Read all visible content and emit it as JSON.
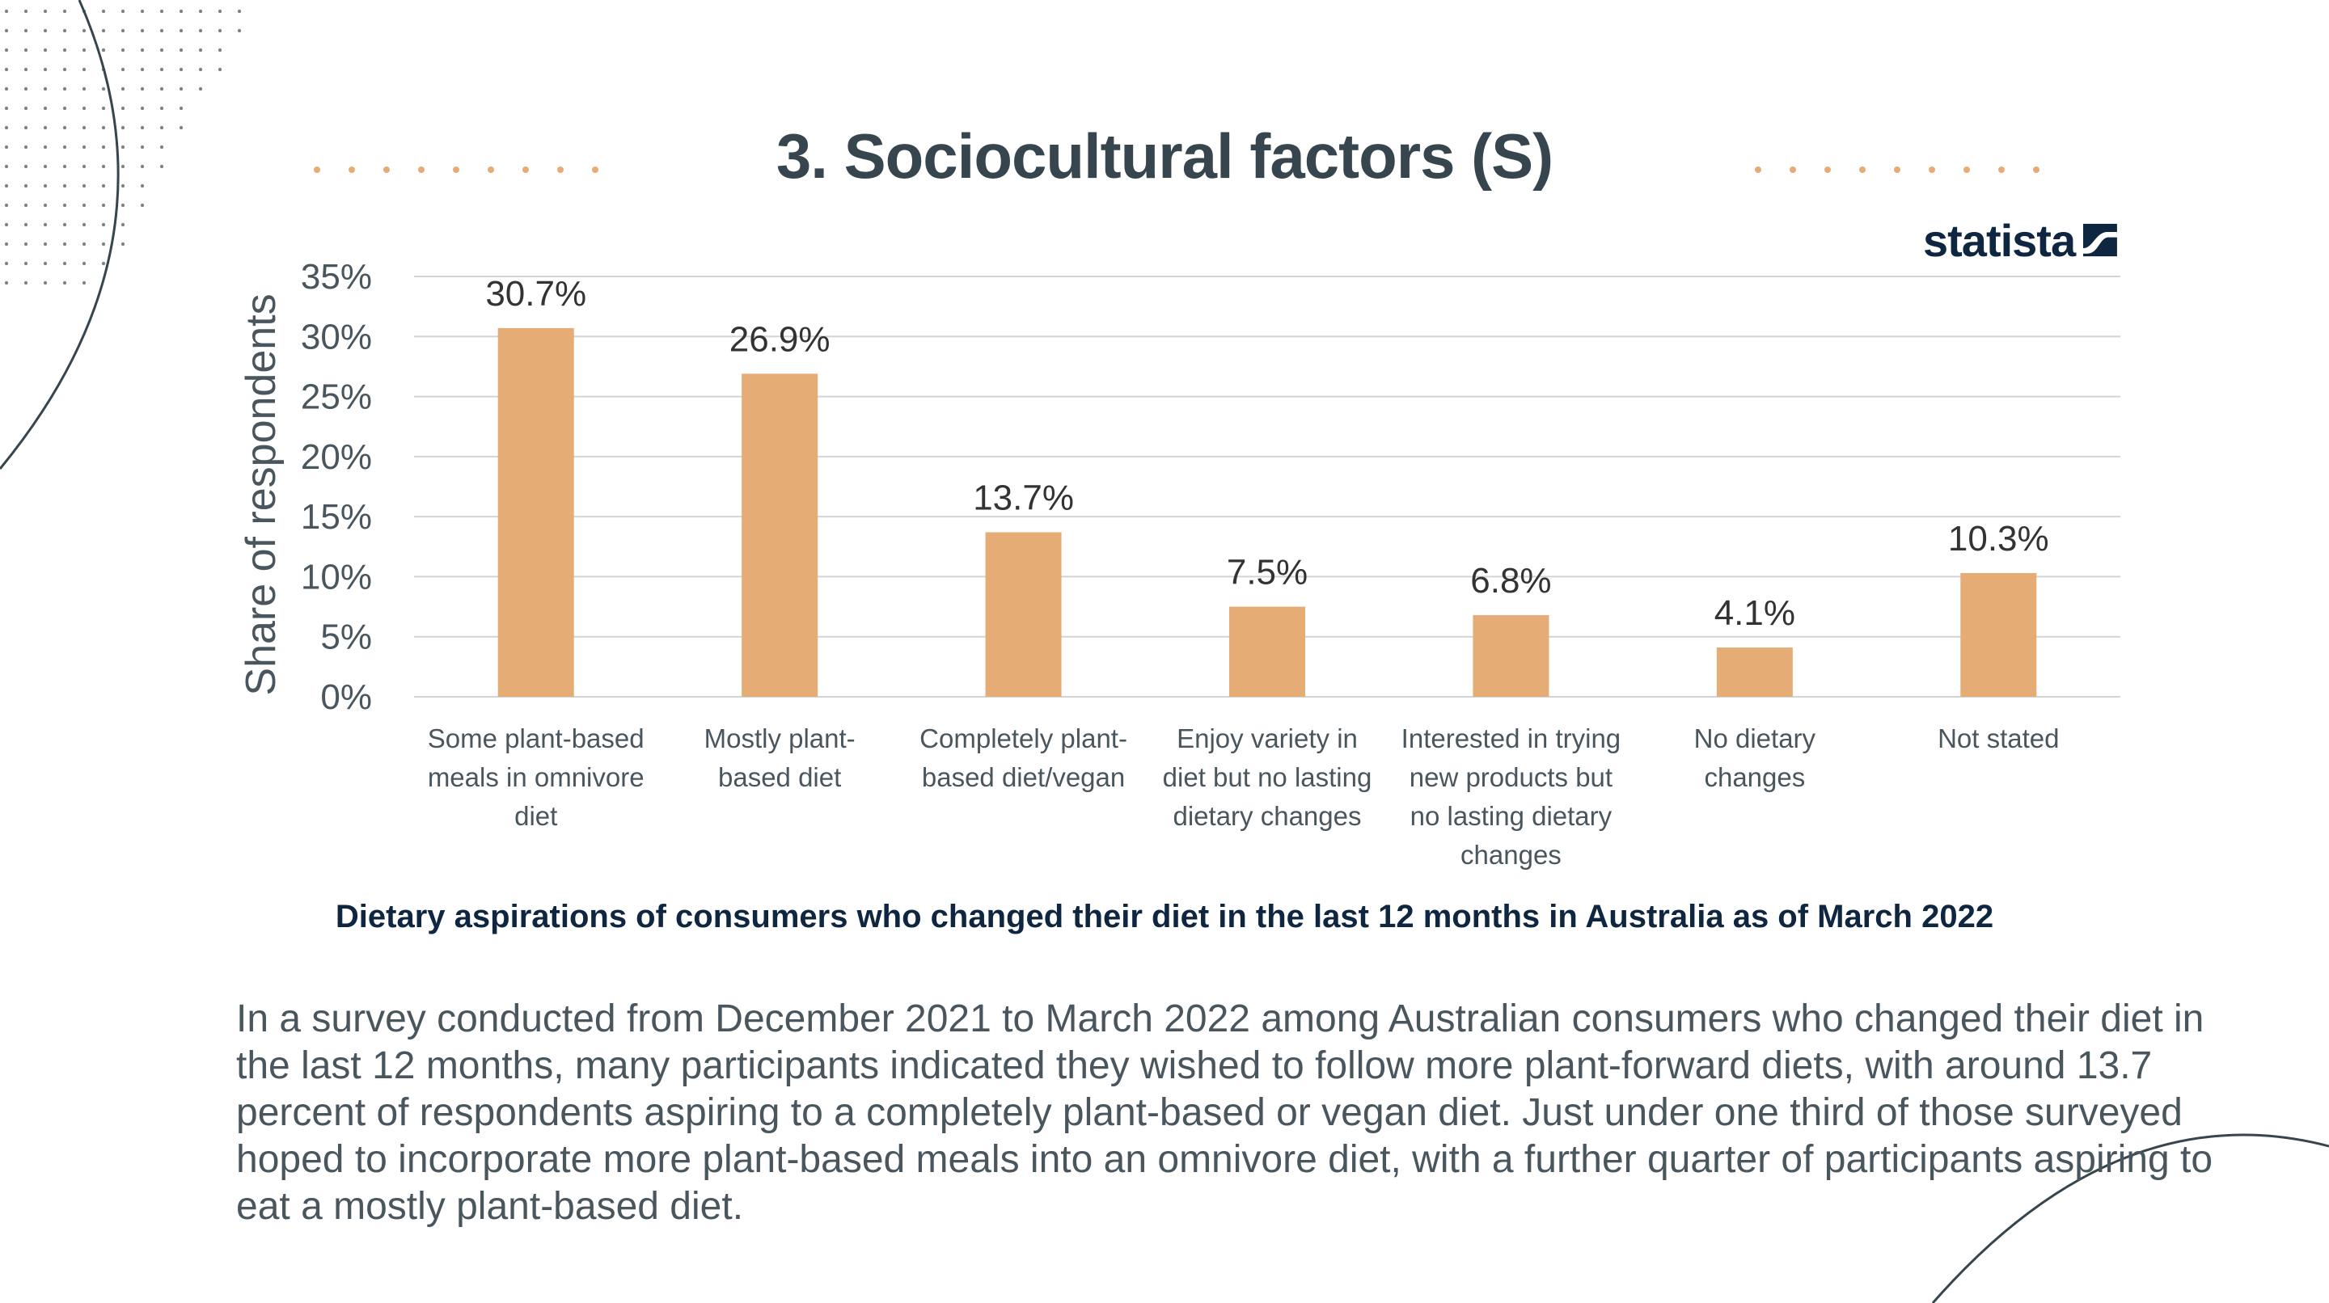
{
  "slide": {
    "title": "3. Sociocultural factors (S)",
    "brand": "statista",
    "caption": "Dietary aspirations of consumers who changed their diet in the last 12 months in Australia as of March 2022",
    "body": "In a survey conducted from December 2021 to March 2022 among Australian consumers who changed their diet in the last 12 months, many participants indicated they wished to follow more plant-forward diets, with around 13.7 percent of respondents aspiring to a completely plant-based or vegan diet. Just under one third of those surveyed hoped to incorporate more plant-based meals into an omnivore diet, with a further quarter of participants aspiring to eat a mostly plant-based diet.",
    "colors": {
      "title": "#36454e",
      "bar": "#e5ac75",
      "caption": "#0f2640",
      "accent_dots": "#e5ac75"
    }
  },
  "chart_data": {
    "type": "bar",
    "categories": [
      [
        "Some plant-based",
        "meals in omnivore",
        "diet"
      ],
      [
        "Mostly plant-",
        "based diet"
      ],
      [
        "Completely plant-",
        "based diet/vegan"
      ],
      [
        "Enjoy variety in",
        "diet but no lasting",
        "dietary changes"
      ],
      [
        "Interested in trying",
        "new products but",
        "no lasting dietary",
        "changes"
      ],
      [
        "No dietary",
        "changes"
      ],
      [
        "Not stated"
      ]
    ],
    "values": [
      30.7,
      26.9,
      13.7,
      7.5,
      6.8,
      4.1,
      10.3
    ],
    "value_labels": [
      "30.7%",
      "26.9%",
      "13.7%",
      "7.5%",
      "6.8%",
      "4.1%",
      "10.3%"
    ],
    "ylabel": "Share of respondents",
    "yticks": [
      0,
      5,
      10,
      15,
      20,
      25,
      30,
      35
    ],
    "ytick_labels": [
      "0%",
      "5%",
      "10%",
      "15%",
      "20%",
      "25%",
      "30%",
      "35%"
    ],
    "ylim": [
      0,
      35
    ],
    "grid": true,
    "legend": false
  }
}
